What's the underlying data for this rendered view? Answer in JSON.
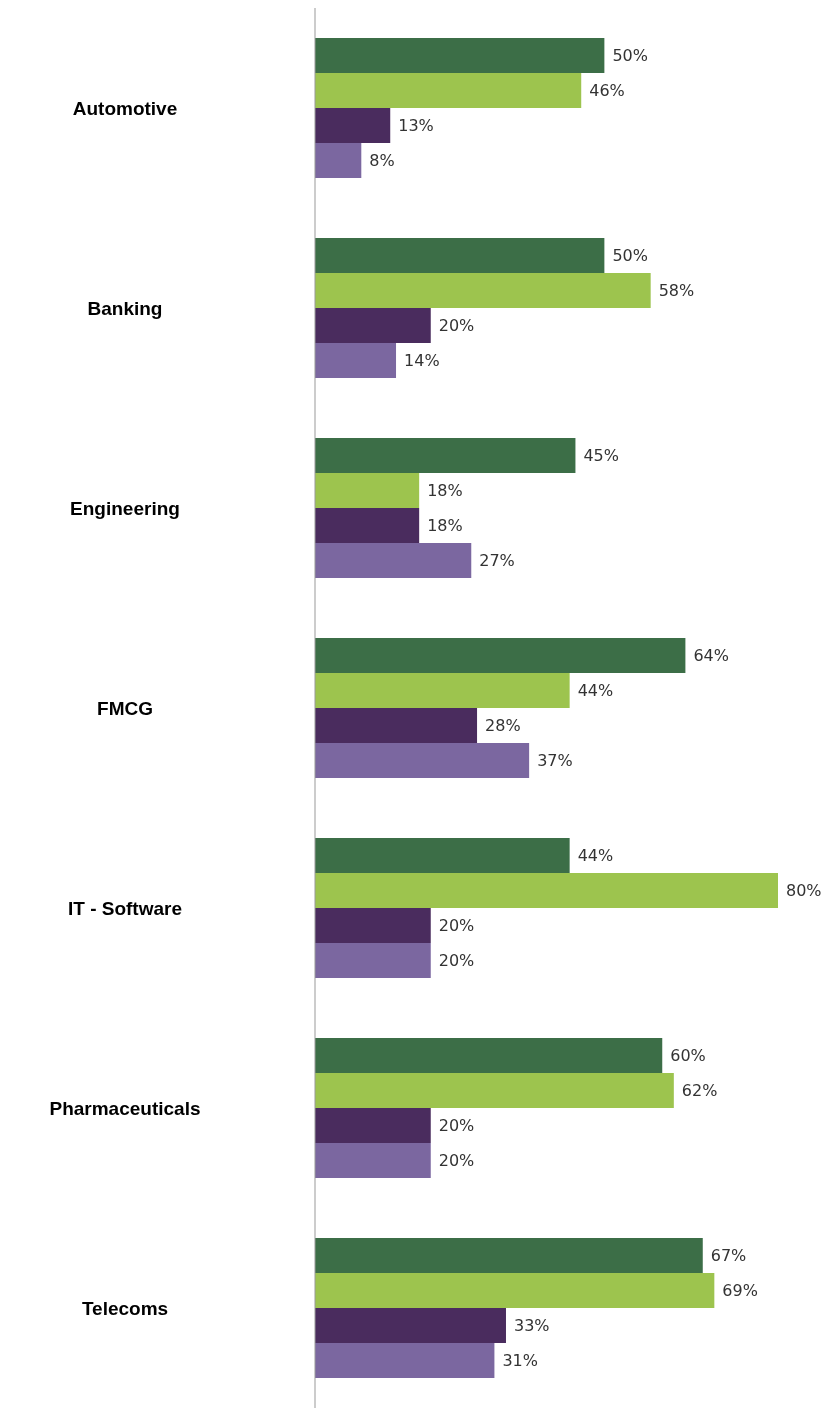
{
  "chart_data": {
    "type": "bar",
    "orientation": "horizontal",
    "categories": [
      "Automotive",
      "Banking",
      "Engineering",
      "FMCG",
      "IT - Software",
      "Pharmaceuticals",
      "Telecoms"
    ],
    "series": [
      {
        "color": "#3c6e47",
        "values": [
          50,
          50,
          45,
          64,
          44,
          60,
          67
        ],
        "value_labels": [
          "50%",
          "50%",
          "45%",
          "64%",
          "44%",
          "60%",
          "67%"
        ]
      },
      {
        "color": "#9dc44e",
        "values": [
          46,
          58,
          18,
          44,
          80,
          62,
          69
        ],
        "value_labels": [
          "46%",
          "58%",
          "18%",
          "44%",
          "80%",
          "62%",
          "69%"
        ]
      },
      {
        "color": "#4a2c5e",
        "values": [
          13,
          20,
          18,
          28,
          20,
          20,
          33
        ],
        "value_labels": [
          "13%",
          "20%",
          "18%",
          "28%",
          "20%",
          "20%",
          "33%"
        ]
      },
      {
        "color": "#7b67a0",
        "values": [
          8,
          14,
          27,
          37,
          20,
          20,
          31
        ],
        "value_labels": [
          "8%",
          "14%",
          "27%",
          "37%",
          "20%",
          "20%",
          "31%"
        ]
      }
    ]
  }
}
